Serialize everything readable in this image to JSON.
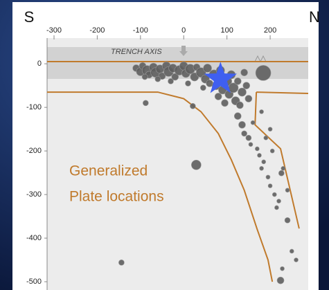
{
  "chart_data": {
    "type": "scatter",
    "left_label": "S",
    "right_label": "N",
    "trench_label": "TRENCH AXIS",
    "plate_label": [
      "Generalized",
      "Plate locations"
    ],
    "xlim": [
      -316,
      288
    ],
    "ylim": [
      -519,
      59
    ],
    "xticks": [
      -300,
      -200,
      -100,
      0,
      100,
      200
    ],
    "yticks": [
      0,
      -100,
      -200,
      -300,
      -400,
      -500
    ],
    "grid": false,
    "point_color": "#5e5e5e",
    "x": [
      -110,
      -100,
      -95,
      -85,
      -80,
      -70,
      -65,
      -55,
      -50,
      -40,
      -35,
      -25,
      -20,
      -10,
      0,
      5,
      15,
      25,
      30,
      40,
      50,
      55,
      60,
      70,
      75,
      85,
      90,
      100,
      105,
      110,
      115,
      120,
      125,
      130,
      135,
      140,
      145,
      150,
      -90,
      -60,
      -30,
      10,
      45,
      80,
      95,
      125,
      135,
      140,
      150,
      155,
      160,
      170,
      175,
      180,
      185,
      195,
      200,
      205,
      210,
      215,
      220,
      230,
      200,
      180,
      190,
      240,
      250,
      260,
      228,
      -88,
      21,
      29,
      -144,
      224,
      240,
      226,
      184
    ],
    "y": [
      -10,
      -18,
      -5,
      -15,
      -25,
      -8,
      -20,
      -12,
      -28,
      -5,
      -18,
      -10,
      -30,
      -15,
      -5,
      -22,
      -12,
      -30,
      -8,
      -20,
      -35,
      -10,
      -45,
      -25,
      -50,
      -15,
      -60,
      -40,
      -70,
      -25,
      -55,
      -85,
      -40,
      -95,
      -65,
      -20,
      -50,
      -80,
      -30,
      -35,
      -40,
      -45,
      -55,
      -75,
      -90,
      -120,
      -140,
      -160,
      -170,
      -185,
      -135,
      -195,
      -210,
      -240,
      -225,
      -260,
      -280,
      -200,
      -300,
      -330,
      -315,
      -240,
      -150,
      -110,
      -170,
      -290,
      -430,
      -450,
      -470,
      -90,
      -97,
      -232,
      -456,
      -497,
      -359,
      -251,
      -21
    ],
    "sizes": [
      5,
      6,
      5,
      7,
      5,
      6,
      7,
      6,
      5,
      6,
      7,
      6,
      5,
      7,
      6,
      6,
      7,
      6,
      5,
      7,
      6,
      6,
      5,
      7,
      6,
      6,
      6,
      7,
      6,
      6,
      7,
      6,
      5,
      5,
      6,
      5,
      5,
      5,
      4,
      4,
      4,
      4,
      4,
      5,
      5,
      5,
      5,
      4,
      4,
      3,
      3,
      3,
      3,
      3,
      3,
      3,
      3,
      3,
      3,
      3,
      3,
      3,
      3,
      3,
      3,
      3,
      3,
      3,
      3,
      4,
      4,
      7,
      4,
      5,
      4,
      4,
      11
    ],
    "star": {
      "x": 85,
      "y": -35,
      "color": "#3f5ff0"
    },
    "plate_lines": {
      "color": "#c07a2c",
      "lines": [
        {
          "x": [
            -316,
            288
          ],
          "y": [
            5,
            5
          ]
        },
        {
          "x": [
            -316,
            -60,
            0,
            40,
            80,
            110,
            140,
            170,
            195,
            205
          ],
          "y": [
            -65,
            -65,
            -80,
            -110,
            -160,
            -220,
            -290,
            -380,
            -450,
            -500
          ]
        },
        {
          "x": [
            168,
            288
          ],
          "y": [
            -65,
            -68
          ]
        },
        {
          "x": [
            168,
            165,
            224,
            267
          ],
          "y": [
            -65,
            -140,
            -195,
            -378
          ]
        }
      ]
    }
  }
}
